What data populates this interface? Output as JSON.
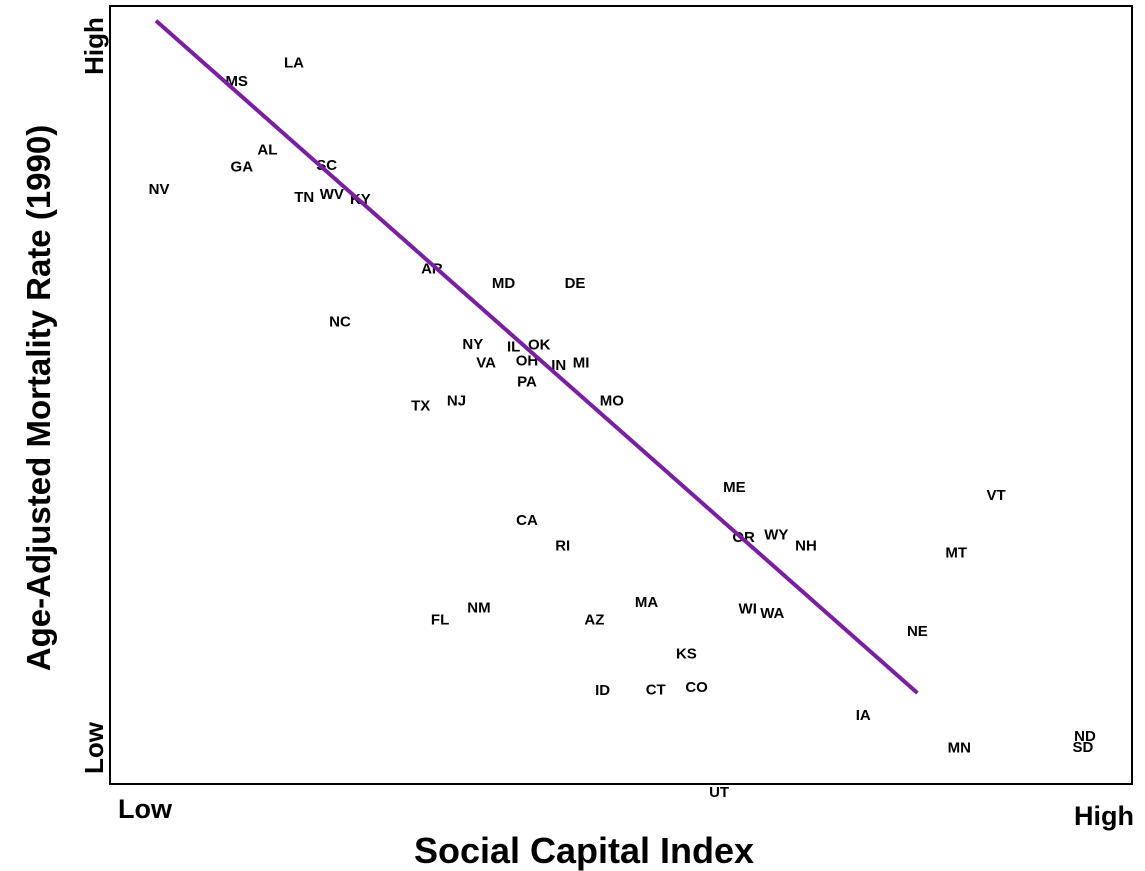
{
  "chart_data": {
    "type": "scatter",
    "xlabel": "Social Capital Index",
    "ylabel": "Age-Adjusted Mortality Rate (1990)",
    "x_ticks": {
      "low": "Low",
      "high": "High"
    },
    "y_ticks": {
      "low": "Low",
      "high": "High"
    },
    "xlim": [
      0,
      1
    ],
    "ylim": [
      0,
      1
    ],
    "grid": false,
    "legend": "none",
    "line_color": "#7b1fa2",
    "trend_line": [
      {
        "x": 0.045,
        "y": 0.981
      },
      {
        "x": 0.79,
        "y": 0.117
      }
    ],
    "points": [
      {
        "label": "LA",
        "x": 0.18,
        "y": 0.927
      },
      {
        "label": "MS",
        "x": 0.124,
        "y": 0.903
      },
      {
        "label": "AL",
        "x": 0.154,
        "y": 0.815
      },
      {
        "label": "GA",
        "x": 0.129,
        "y": 0.793
      },
      {
        "label": "SC",
        "x": 0.212,
        "y": 0.795
      },
      {
        "label": "NV",
        "x": 0.048,
        "y": 0.764
      },
      {
        "label": "TN",
        "x": 0.19,
        "y": 0.754
      },
      {
        "label": "WV",
        "x": 0.217,
        "y": 0.758
      },
      {
        "label": "KY",
        "x": 0.245,
        "y": 0.751
      },
      {
        "label": "AR",
        "x": 0.315,
        "y": 0.662
      },
      {
        "label": "MD",
        "x": 0.385,
        "y": 0.643
      },
      {
        "label": "DE",
        "x": 0.455,
        "y": 0.643
      },
      {
        "label": "NC",
        "x": 0.225,
        "y": 0.594
      },
      {
        "label": "NY",
        "x": 0.355,
        "y": 0.565
      },
      {
        "label": "IL",
        "x": 0.395,
        "y": 0.562
      },
      {
        "label": "OK",
        "x": 0.42,
        "y": 0.564
      },
      {
        "label": "VA",
        "x": 0.368,
        "y": 0.541
      },
      {
        "label": "OH",
        "x": 0.408,
        "y": 0.544
      },
      {
        "label": "IN",
        "x": 0.439,
        "y": 0.538
      },
      {
        "label": "MI",
        "x": 0.461,
        "y": 0.541
      },
      {
        "label": "PA",
        "x": 0.408,
        "y": 0.517
      },
      {
        "label": "TX",
        "x": 0.304,
        "y": 0.486
      },
      {
        "label": "NJ",
        "x": 0.339,
        "y": 0.492
      },
      {
        "label": "MO",
        "x": 0.491,
        "y": 0.492
      },
      {
        "label": "ME",
        "x": 0.611,
        "y": 0.381
      },
      {
        "label": "VT",
        "x": 0.867,
        "y": 0.371
      },
      {
        "label": "CA",
        "x": 0.408,
        "y": 0.339
      },
      {
        "label": "RI",
        "x": 0.443,
        "y": 0.306
      },
      {
        "label": "OR",
        "x": 0.62,
        "y": 0.317
      },
      {
        "label": "WY",
        "x": 0.652,
        "y": 0.32
      },
      {
        "label": "NH",
        "x": 0.681,
        "y": 0.306
      },
      {
        "label": "MT",
        "x": 0.828,
        "y": 0.297
      },
      {
        "label": "MA",
        "x": 0.525,
        "y": 0.233
      },
      {
        "label": "NM",
        "x": 0.361,
        "y": 0.226
      },
      {
        "label": "FL",
        "x": 0.323,
        "y": 0.211
      },
      {
        "label": "AZ",
        "x": 0.474,
        "y": 0.211
      },
      {
        "label": "WI",
        "x": 0.624,
        "y": 0.225
      },
      {
        "label": "WA",
        "x": 0.648,
        "y": 0.219
      },
      {
        "label": "NE",
        "x": 0.79,
        "y": 0.196
      },
      {
        "label": "KS",
        "x": 0.564,
        "y": 0.167
      },
      {
        "label": "ID",
        "x": 0.482,
        "y": 0.12
      },
      {
        "label": "CT",
        "x": 0.534,
        "y": 0.121
      },
      {
        "label": "CO",
        "x": 0.574,
        "y": 0.124
      },
      {
        "label": "IA",
        "x": 0.737,
        "y": 0.088
      },
      {
        "label": "MN",
        "x": 0.831,
        "y": 0.046
      },
      {
        "label": "ND",
        "x": 0.954,
        "y": 0.061
      },
      {
        "label": "SD",
        "x": 0.952,
        "y": 0.047
      },
      {
        "label": "UT",
        "x": 0.596,
        "y": -0.011
      }
    ]
  }
}
